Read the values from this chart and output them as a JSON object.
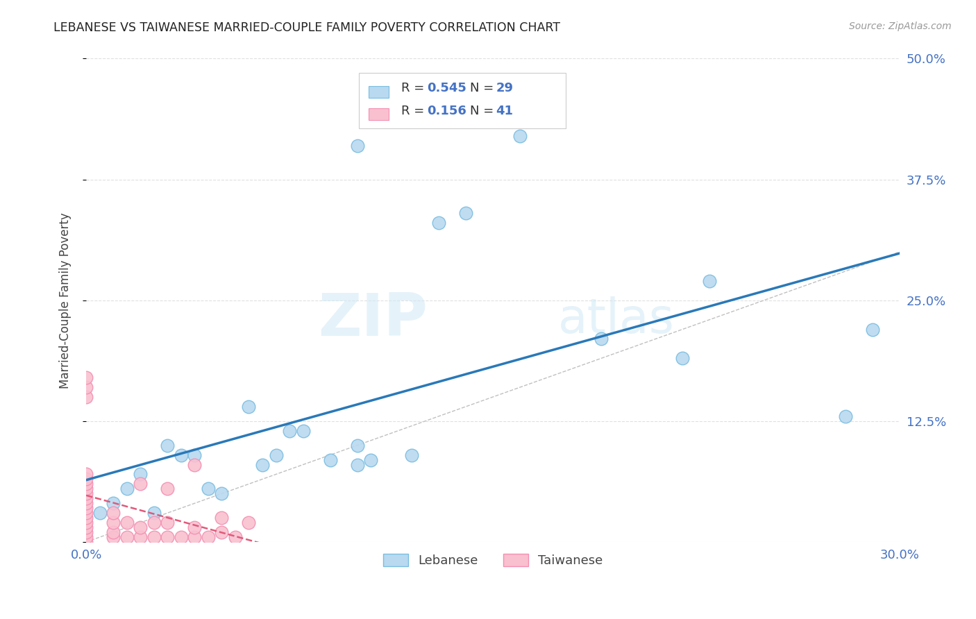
{
  "title": "LEBANESE VS TAIWANESE MARRIED-COUPLE FAMILY POVERTY CORRELATION CHART",
  "source": "Source: ZipAtlas.com",
  "ylabel": "Married-Couple Family Poverty",
  "xlim": [
    0.0,
    0.3
  ],
  "ylim": [
    0.0,
    0.5
  ],
  "xticks": [
    0.0,
    0.05,
    0.1,
    0.15,
    0.2,
    0.25,
    0.3
  ],
  "xticklabels": [
    "0.0%",
    "",
    "",
    "",
    "",
    "",
    "30.0%"
  ],
  "yticks": [
    0.0,
    0.125,
    0.25,
    0.375,
    0.5
  ],
  "yticklabels": [
    "",
    "12.5%",
    "25.0%",
    "37.5%",
    "50.0%"
  ],
  "watermark": "ZIPatlas",
  "legend_R_lebanese": "0.545",
  "legend_N_lebanese": "29",
  "legend_R_taiwanese": "0.156",
  "legend_N_taiwanese": "41",
  "lebanese_color": "#7abde0",
  "taiwanese_color": "#f48fb1",
  "lebanese_fill": "#b8d9f0",
  "taiwanese_fill": "#f9c0d0",
  "trendline_lebanese_color": "#2979b8",
  "trendline_taiwanese_color": "#e05a7a",
  "diagonal_color": "#c0c0c0",
  "grid_color": "#e0e0e0",
  "title_color": "#222222",
  "axis_label_color": "#444444",
  "tick_color": "#4472c4",
  "source_color": "#999999",
  "legend_value_color": "#4472c4",
  "lebanese_x": [
    0.005,
    0.01,
    0.015,
    0.02,
    0.025,
    0.03,
    0.035,
    0.04,
    0.045,
    0.05,
    0.06,
    0.065,
    0.07,
    0.075,
    0.08,
    0.09,
    0.1,
    0.1,
    0.105,
    0.12,
    0.13,
    0.14,
    0.16,
    0.19,
    0.22,
    0.23,
    0.28,
    0.29,
    0.1
  ],
  "lebanese_y": [
    0.03,
    0.04,
    0.055,
    0.07,
    0.03,
    0.1,
    0.09,
    0.09,
    0.055,
    0.05,
    0.14,
    0.08,
    0.09,
    0.115,
    0.115,
    0.085,
    0.08,
    0.1,
    0.085,
    0.09,
    0.33,
    0.34,
    0.42,
    0.21,
    0.19,
    0.27,
    0.13,
    0.22,
    0.41
  ],
  "taiwanese_x": [
    0.0,
    0.0,
    0.0,
    0.0,
    0.0,
    0.0,
    0.0,
    0.0,
    0.0,
    0.0,
    0.0,
    0.0,
    0.0,
    0.0,
    0.0,
    0.0,
    0.0,
    0.0,
    0.01,
    0.01,
    0.01,
    0.01,
    0.02,
    0.02,
    0.02,
    0.03,
    0.03,
    0.03,
    0.04,
    0.04,
    0.04,
    0.05,
    0.05,
    0.06,
    0.015,
    0.015,
    0.025,
    0.025,
    0.035,
    0.045,
    0.055
  ],
  "taiwanese_y": [
    0.0,
    0.005,
    0.01,
    0.015,
    0.02,
    0.025,
    0.03,
    0.035,
    0.04,
    0.045,
    0.05,
    0.055,
    0.06,
    0.065,
    0.07,
    0.15,
    0.16,
    0.17,
    0.005,
    0.01,
    0.02,
    0.03,
    0.005,
    0.015,
    0.06,
    0.005,
    0.02,
    0.055,
    0.005,
    0.015,
    0.08,
    0.01,
    0.025,
    0.02,
    0.005,
    0.02,
    0.005,
    0.02,
    0.005,
    0.005,
    0.005
  ],
  "background_color": "#ffffff"
}
